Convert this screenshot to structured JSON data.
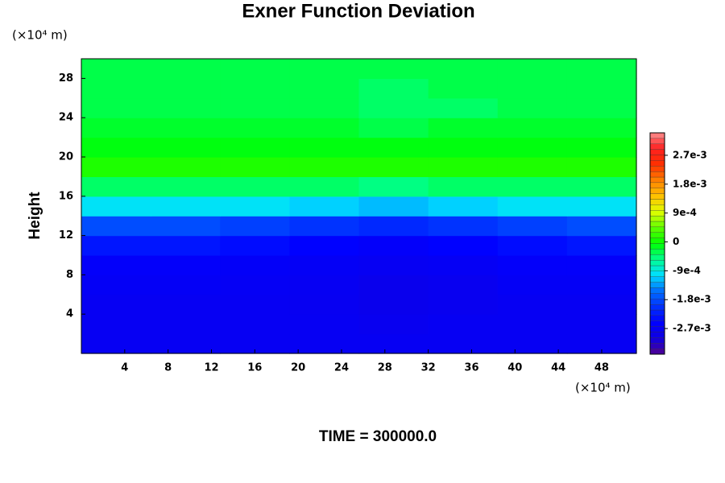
{
  "chart_data": {
    "type": "contour",
    "title": "Exner Function Deviation",
    "ylabel": "Height",
    "xunit": "(×10⁴ m)",
    "yunit": "(×10⁴ m)",
    "footer": "TIME = 300000.0",
    "x": [
      3.2,
      9.6,
      16,
      22.4,
      28.8,
      35.2,
      41.6,
      48
    ],
    "y": [
      1,
      3,
      5,
      7,
      9,
      11,
      13,
      15,
      17,
      19,
      21,
      23,
      25,
      27,
      29
    ],
    "z": [
      [
        -0.0027,
        -0.0027,
        -0.0027,
        -0.0027,
        -0.0027,
        -0.0027,
        -0.0027,
        -0.0027
      ],
      [
        -0.0027,
        -0.0027,
        -0.0027,
        -0.0027,
        -0.00275,
        -0.0027,
        -0.0027,
        -0.0027
      ],
      [
        -0.0027,
        -0.0027,
        -0.0027,
        -0.00272,
        -0.0028,
        -0.00275,
        -0.0027,
        -0.0027
      ],
      [
        -0.00265,
        -0.00265,
        -0.00268,
        -0.0027,
        -0.0028,
        -0.00275,
        -0.00265,
        -0.00265
      ],
      [
        -0.0026,
        -0.0026,
        -0.00262,
        -0.00265,
        -0.0027,
        -0.00268,
        -0.0026,
        -0.0026
      ],
      [
        -0.0023,
        -0.0023,
        -0.0024,
        -0.0025,
        -0.0026,
        -0.0025,
        -0.0024,
        -0.0023
      ],
      [
        -0.0018,
        -0.0018,
        -0.0019,
        -0.002,
        -0.0021,
        -0.002,
        -0.0019,
        -0.0018
      ],
      [
        -0.001,
        -0.001,
        -0.001,
        -0.0011,
        -0.0012,
        -0.0011,
        -0.001,
        -0.001
      ],
      [
        -0.0004,
        -0.0004,
        -0.0004,
        -0.0004,
        -0.0005,
        -0.0004,
        -0.0004,
        -0.0004
      ],
      [
        0.0001,
        0.0001,
        0.0001,
        0.0001,
        0.0001,
        0.0001,
        0.0001,
        0.0001
      ],
      [
        -0.0001,
        -0.0001,
        -0.0001,
        -0.0001,
        -0.0001,
        -0.0001,
        -0.0001,
        -0.0001
      ],
      [
        -0.0002,
        -0.0002,
        -0.0002,
        -0.0002,
        -0.0003,
        -0.0002,
        -0.0002,
        -0.0002
      ],
      [
        -0.0003,
        -0.0003,
        -0.0003,
        -0.0003,
        -0.0004,
        -0.0004,
        -0.0003,
        -0.0003
      ],
      [
        -0.0003,
        -0.0003,
        -0.0003,
        -0.0003,
        -0.0004,
        -0.0003,
        -0.0003,
        -0.0003
      ],
      [
        -0.0003,
        -0.0003,
        -0.0003,
        -0.0003,
        -0.0003,
        -0.0003,
        -0.0003,
        -0.0003
      ]
    ],
    "xlim": [
      0,
      51.2
    ],
    "ylim": [
      0,
      30
    ],
    "xticks": [
      4,
      8,
      12,
      16,
      20,
      24,
      28,
      32,
      36,
      40,
      44,
      48
    ],
    "yticks": [
      4,
      8,
      12,
      16,
      20,
      24,
      28
    ],
    "clim": [
      -0.0035,
      0.0034
    ],
    "cticks": [
      {
        "value": -0.0027,
        "label": "-2.7e-3"
      },
      {
        "value": -0.0018,
        "label": "-1.8e-3"
      },
      {
        "value": -0.0009,
        "label": "-9e-4"
      },
      0,
      {
        "value": 0.0009,
        "label": "9e-4"
      },
      {
        "value": 0.0018,
        "label": "1.8e-3"
      },
      {
        "value": 0.0027,
        "label": "2.7e-3"
      }
    ],
    "colormap": [
      "#500090",
      "#1000e0",
      "#0000ff",
      "#0030ff",
      "#0070ff",
      "#00e0ff",
      "#00ff90",
      "#00ff00",
      "#60ff00",
      "#e0ff00",
      "#ffc000",
      "#ff8000",
      "#ff3000",
      "#ff2020",
      "#ff9090"
    ]
  }
}
